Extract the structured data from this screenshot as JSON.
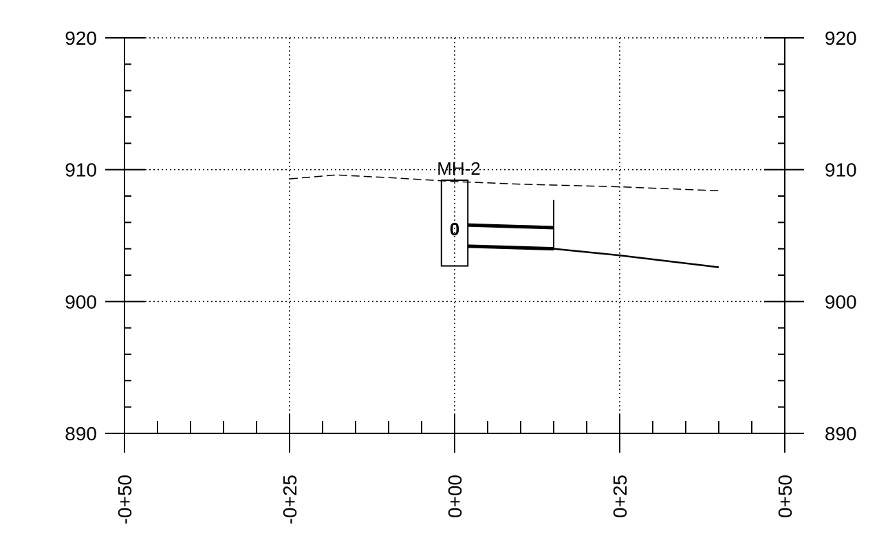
{
  "chart_data": {
    "type": "line",
    "title": "",
    "xlabel": "",
    "ylabel": "",
    "xlim": [
      -50,
      50
    ],
    "ylim": [
      890,
      920
    ],
    "y_ticks": [
      890,
      900,
      910,
      920
    ],
    "y_tick_labels": [
      "890",
      "900",
      "910",
      "920"
    ],
    "x_ticks": [
      -50,
      -25,
      0,
      25,
      50
    ],
    "x_tick_labels": [
      "-0+50",
      "-0+25",
      "0+00",
      "0+25",
      "0+50"
    ],
    "grid": true,
    "series": [
      {
        "style": "dashed",
        "x": [
          -25,
          -18,
          -10,
          0,
          10,
          25,
          40
        ],
        "y": [
          909.3,
          909.6,
          909.4,
          909.1,
          908.9,
          908.7,
          908.4
        ]
      },
      {
        "style": "solid",
        "x": [
          15,
          25,
          40
        ],
        "y": [
          904.0,
          903.5,
          902.6
        ]
      }
    ],
    "structures": [
      {
        "label": "MH-2",
        "station": 0,
        "rim": 909.2,
        "invert": 902.7,
        "body_left": -2,
        "body_right": 2,
        "pipe_end": 15,
        "pipe_top": [
          905.8,
          905.6
        ],
        "pipe_bottom": [
          904.2,
          904.0
        ],
        "headwall_top": 907.7,
        "marker": "0",
        "marker_elev": 905.7
      }
    ]
  }
}
